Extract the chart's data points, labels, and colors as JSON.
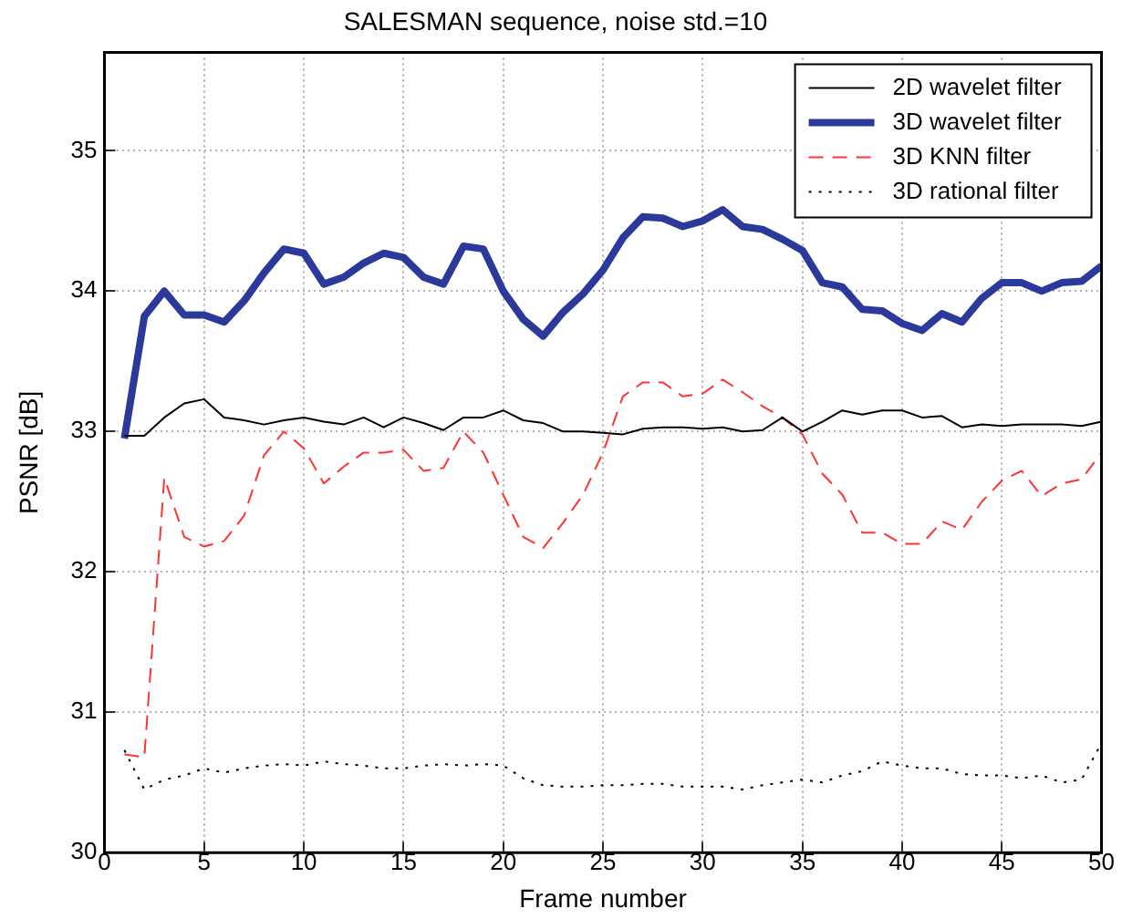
{
  "chart_data": {
    "type": "line",
    "title": "SALESMAN sequence, noise std.=10",
    "xlabel": "Frame number",
    "ylabel": "PSNR [dB]",
    "x": [
      1,
      2,
      3,
      4,
      5,
      6,
      7,
      8,
      9,
      10,
      11,
      12,
      13,
      14,
      15,
      16,
      17,
      18,
      19,
      20,
      21,
      22,
      23,
      24,
      25,
      26,
      27,
      28,
      29,
      30,
      31,
      32,
      33,
      34,
      35,
      36,
      37,
      38,
      39,
      40,
      41,
      42,
      43,
      44,
      45,
      46,
      47,
      48,
      49,
      50
    ],
    "xlim": [
      0,
      50
    ],
    "xticks": [
      0,
      5,
      10,
      15,
      20,
      25,
      30,
      35,
      40,
      45,
      50
    ],
    "ylim": [
      30,
      35.7
    ],
    "yticks": [
      30,
      31,
      32,
      33,
      34,
      35
    ],
    "grid": true,
    "legend": "top right",
    "marker": "none",
    "series": [
      {
        "name": "2D wavelet filter",
        "color": "#000000",
        "line_style": "solid",
        "values": [
          32.97,
          32.97,
          33.1,
          33.2,
          33.23,
          33.1,
          33.08,
          33.05,
          33.08,
          33.1,
          33.07,
          33.05,
          33.1,
          33.03,
          33.1,
          33.06,
          33.01,
          33.1,
          33.1,
          33.15,
          33.08,
          33.06,
          33.0,
          33.0,
          32.99,
          32.98,
          33.02,
          33.03,
          33.03,
          33.02,
          33.03,
          33.0,
          33.01,
          33.1,
          33.0,
          33.07,
          33.15,
          33.12,
          33.15,
          33.15,
          33.1,
          33.11,
          33.03,
          33.05,
          33.04,
          33.05,
          33.05,
          33.05,
          33.04,
          33.07
        ]
      },
      {
        "name": "3D wavelet filter",
        "color": "#2b3a9a",
        "line_style": "solid",
        "values": [
          32.95,
          33.82,
          34.0,
          33.83,
          33.83,
          33.78,
          33.93,
          34.13,
          34.3,
          34.27,
          34.05,
          34.1,
          34.2,
          34.27,
          34.24,
          34.1,
          34.05,
          34.32,
          34.3,
          34.0,
          33.8,
          33.68,
          33.85,
          33.98,
          34.15,
          34.38,
          34.53,
          34.52,
          34.46,
          34.5,
          34.58,
          34.46,
          34.44,
          34.37,
          34.29,
          34.06,
          34.03,
          33.87,
          33.86,
          33.77,
          33.72,
          33.84,
          33.78,
          33.95,
          34.06,
          34.06,
          34.0,
          34.06,
          34.07,
          34.18
        ]
      },
      {
        "name": "3D KNN filter",
        "color": "#ff3333",
        "line_style": "dashed",
        "values": [
          30.7,
          30.68,
          32.67,
          32.25,
          32.18,
          32.22,
          32.4,
          32.83,
          33.0,
          32.88,
          32.63,
          32.75,
          32.85,
          32.85,
          32.87,
          32.72,
          32.74,
          33.0,
          32.85,
          32.55,
          32.25,
          32.17,
          32.35,
          32.55,
          32.85,
          33.25,
          33.35,
          33.35,
          33.25,
          33.27,
          33.37,
          33.28,
          33.18,
          33.1,
          32.98,
          32.7,
          32.55,
          32.28,
          32.28,
          32.2,
          32.2,
          32.36,
          32.3,
          32.5,
          32.65,
          32.72,
          32.54,
          32.63,
          32.66,
          32.85
        ]
      },
      {
        "name": "3D rational filter",
        "color": "#000000",
        "line_style": "dotted",
        "values": [
          30.73,
          30.45,
          30.52,
          30.55,
          30.6,
          30.57,
          30.6,
          30.62,
          30.63,
          30.62,
          30.65,
          30.63,
          30.62,
          30.6,
          30.6,
          30.62,
          30.63,
          30.62,
          30.63,
          30.62,
          30.53,
          30.48,
          30.47,
          30.47,
          30.48,
          30.48,
          30.49,
          30.49,
          30.47,
          30.47,
          30.47,
          30.45,
          30.48,
          30.5,
          30.52,
          30.5,
          30.55,
          30.58,
          30.65,
          30.62,
          30.6,
          30.6,
          30.56,
          30.55,
          30.55,
          30.53,
          30.55,
          30.5,
          30.52,
          30.78
        ]
      }
    ]
  }
}
